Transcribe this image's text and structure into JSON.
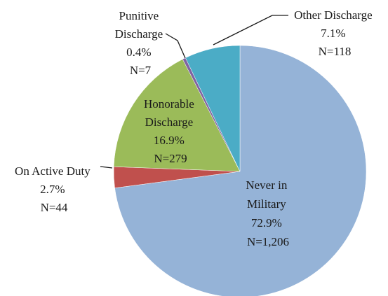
{
  "chart_data": {
    "type": "pie",
    "title": "",
    "slices": [
      {
        "name": "Never in Military",
        "percent": 72.9,
        "n": 1206,
        "pct_label": "72.9%",
        "n_label": "N=1,206",
        "color": "#95b3d7"
      },
      {
        "name": "On Active Duty",
        "percent": 2.7,
        "n": 44,
        "pct_label": "2.7%",
        "n_label": "N=44",
        "color": "#c0504d"
      },
      {
        "name": "Honorable Discharge",
        "percent": 16.9,
        "n": 279,
        "pct_label": "16.9%",
        "n_label": "N=279",
        "color": "#9bbb59"
      },
      {
        "name": "Punitive Discharge",
        "percent": 0.4,
        "n": 7,
        "pct_label": "0.4%",
        "n_label": "N=7",
        "color": "#8064a2"
      },
      {
        "name": "Other Discharge",
        "percent": 7.1,
        "n": 118,
        "pct_label": "7.1%",
        "n_label": "N=118",
        "color": "#4bacc6"
      }
    ],
    "labels": {
      "never": [
        "Never in",
        "Military",
        "72.9%",
        "N=1,206"
      ],
      "active": [
        "On Active Duty",
        "2.7%",
        "N=44"
      ],
      "honorable": [
        "Honorable",
        "Discharge",
        "16.9%",
        "N=279"
      ],
      "punitive": [
        "Punitive",
        "Discharge",
        "0.4%",
        "N=7"
      ],
      "other": [
        "Other Discharge",
        "7.1%",
        "N=118"
      ]
    }
  }
}
